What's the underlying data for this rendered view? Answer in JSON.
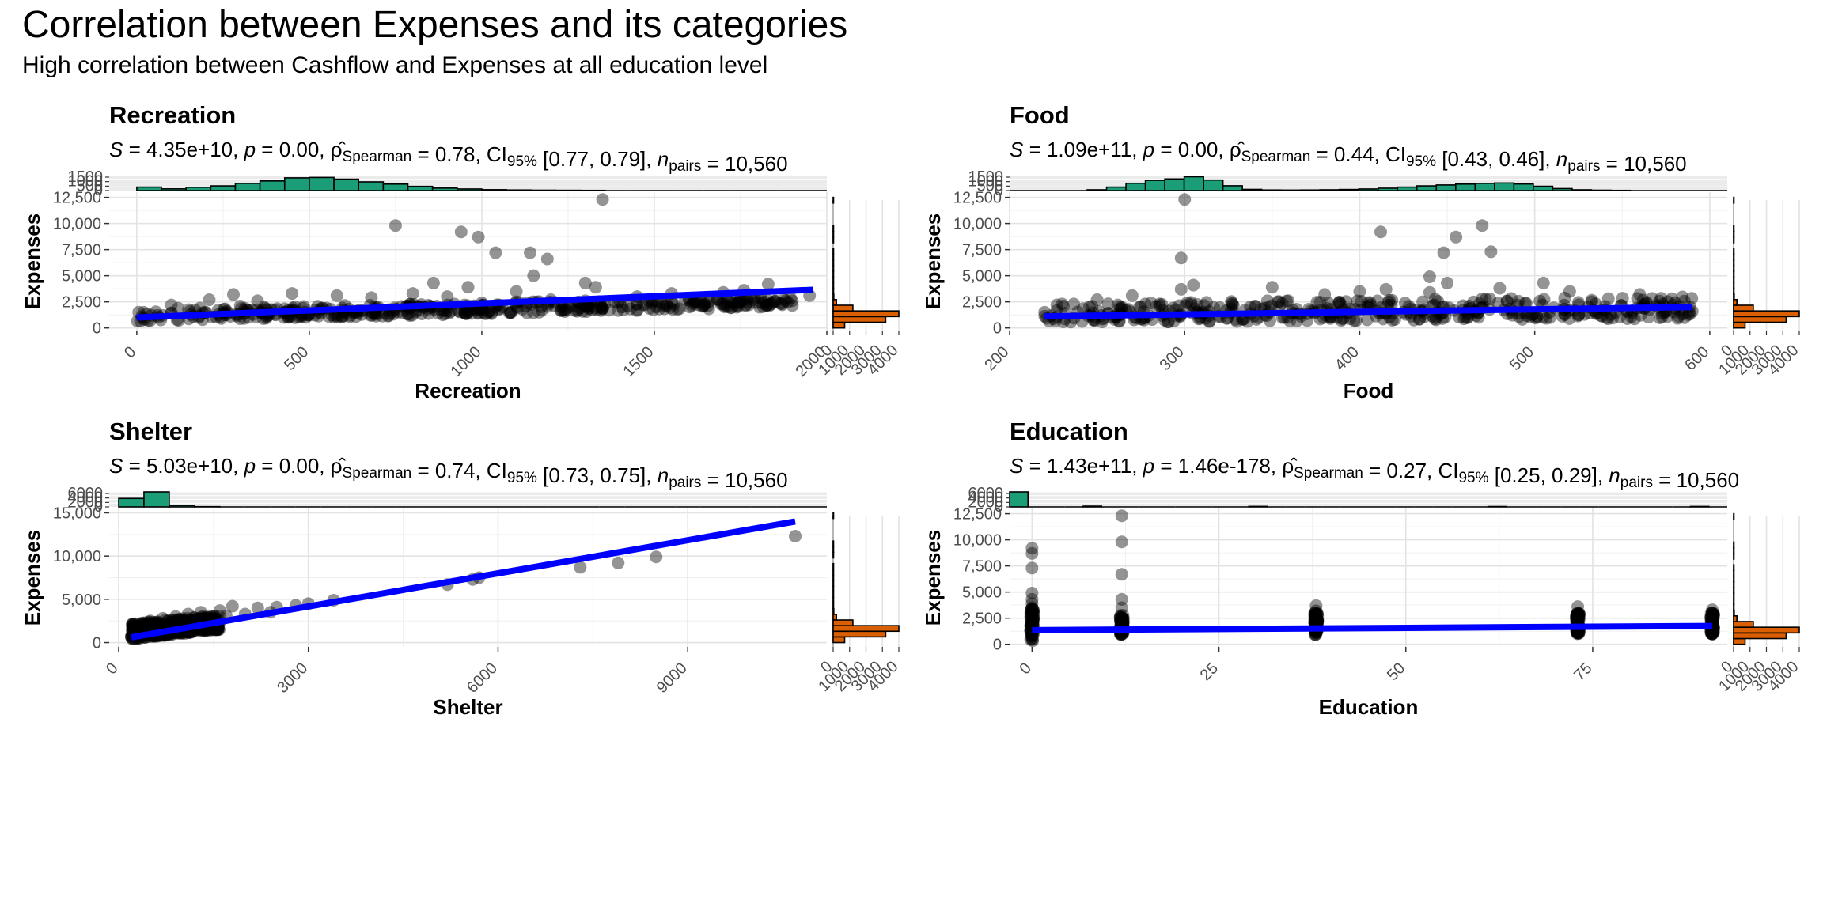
{
  "title": "Correlation between Expenses and its categories",
  "subtitle": "High correlation between Cashflow and Expenses at all education level",
  "colors": {
    "points": "#000000",
    "fit_line": "#0000ff",
    "x_marginal_histogram": "#1b9e77",
    "y_marginal_histogram": "#d95f02"
  },
  "chart_data": [
    {
      "type": "scatter",
      "panel_title": "Recreation",
      "stats": {
        "S": "4.35e+10",
        "p": "0.00",
        "rho": "0.78",
        "ci": "[0.77, 0.79]",
        "n_pairs": "10,560"
      },
      "xlabel": "Recreation",
      "ylabel": "Expenses",
      "xlim": [
        -80,
        2000
      ],
      "ylim": [
        -250,
        13000
      ],
      "x_ticks": [
        0,
        500,
        1000,
        1500,
        2000
      ],
      "y_ticks": [
        0,
        2500,
        5000,
        7500,
        10000,
        12500
      ],
      "y_tick_labels": [
        "0",
        "2,500",
        "5,000",
        "7,500",
        "10,000",
        "12,500"
      ],
      "fit_line": {
        "x": [
          0,
          1960
        ],
        "y": [
          1000,
          3650
        ]
      },
      "points": [
        [
          750,
          9800
        ],
        [
          940,
          9200
        ],
        [
          990,
          8700
        ],
        [
          1040,
          7200
        ],
        [
          1140,
          7200
        ],
        [
          1190,
          6600
        ],
        [
          1150,
          5000
        ],
        [
          1350,
          12300
        ],
        [
          1300,
          4300
        ],
        [
          1330,
          3900
        ],
        [
          1100,
          3500
        ],
        [
          1830,
          4200
        ],
        [
          860,
          4300
        ],
        [
          960,
          3900
        ],
        [
          1760,
          3600
        ],
        [
          1700,
          3400
        ],
        [
          1950,
          3100
        ],
        [
          1550,
          3300
        ],
        [
          1450,
          3000
        ],
        [
          280,
          3200
        ],
        [
          450,
          3300
        ],
        [
          580,
          3100
        ],
        [
          210,
          2700
        ],
        [
          350,
          2600
        ],
        [
          680,
          2900
        ],
        [
          800,
          3300
        ],
        [
          900,
          3000
        ],
        [
          1200,
          2700
        ],
        [
          1600,
          2800
        ],
        [
          1800,
          3000
        ],
        [
          1650,
          2600
        ],
        [
          1400,
          2500
        ],
        [
          1500,
          2600
        ],
        [
          1000,
          2400
        ],
        [
          1100,
          2500
        ],
        [
          1300,
          2600
        ],
        [
          100,
          2200
        ],
        [
          20,
          1500
        ],
        [
          60,
          1200
        ],
        [
          200,
          1500
        ],
        [
          400,
          1700
        ],
        [
          550,
          1900
        ],
        [
          700,
          2000
        ],
        [
          850,
          2100
        ],
        [
          950,
          2200
        ],
        [
          120,
          1900
        ],
        [
          300,
          2100
        ],
        [
          180,
          1000
        ],
        [
          400,
          1300
        ],
        [
          600,
          1500
        ],
        [
          750,
          1800
        ],
        [
          900,
          1900
        ],
        [
          1050,
          2200
        ],
        [
          1250,
          2400
        ],
        [
          1450,
          2300
        ],
        [
          1750,
          2500
        ],
        [
          1900,
          2600
        ]
      ],
      "band": {
        "x": [
          0,
          1900
        ],
        "y_low": [
          600,
          2000
        ],
        "y_high": [
          1800,
          3000
        ]
      },
      "x_hist": {
        "range": [
          0,
          2000
        ],
        "max": 1500,
        "ticks": [
          "1500",
          "1000",
          "500",
          "0"
        ],
        "values": [
          350,
          170,
          330,
          470,
          720,
          960,
          1270,
          1310,
          1140,
          870,
          650,
          420,
          250,
          160,
          90,
          60,
          40,
          30,
          20,
          15,
          10,
          8,
          6,
          5,
          4,
          3,
          2,
          2
        ]
      },
      "y_hist": {
        "max": 4000,
        "ticks": [
          "0",
          "1000",
          "2000",
          "3000",
          "4000"
        ],
        "values": [
          700,
          3200,
          4000,
          1200,
          200,
          40,
          10,
          5,
          2,
          2,
          1,
          1,
          1,
          1,
          0,
          1,
          1,
          1,
          0,
          0,
          0,
          0,
          1
        ]
      }
    },
    {
      "type": "scatter",
      "panel_title": "Food",
      "stats": {
        "S": "1.09e+11",
        "p": "0.00",
        "rho": "0.44",
        "ci": "[0.43, 0.46]",
        "n_pairs": "10,560"
      },
      "xlabel": "Food",
      "ylabel": "Expenses",
      "xlim": [
        200,
        610
      ],
      "ylim": [
        -250,
        13000
      ],
      "x_ticks": [
        200,
        300,
        400,
        500,
        600
      ],
      "y_ticks": [
        0,
        2500,
        5000,
        7500,
        10000,
        12500
      ],
      "y_tick_labels": [
        "0",
        "2,500",
        "5,000",
        "7,500",
        "10,000",
        "12,500"
      ],
      "fit_line": {
        "x": [
          220,
          590
        ],
        "y": [
          1100,
          2000
        ]
      },
      "points": [
        [
          300,
          12300
        ],
        [
          298,
          6700
        ],
        [
          412,
          9200
        ],
        [
          448,
          7200
        ],
        [
          455,
          8700
        ],
        [
          475,
          7300
        ],
        [
          470,
          9800
        ],
        [
          440,
          4900
        ],
        [
          450,
          4300
        ],
        [
          505,
          4300
        ],
        [
          415,
          3700
        ],
        [
          298,
          3700
        ],
        [
          305,
          4100
        ],
        [
          350,
          3900
        ],
        [
          400,
          3500
        ],
        [
          480,
          3800
        ],
        [
          520,
          3500
        ],
        [
          560,
          3200
        ],
        [
          270,
          3100
        ],
        [
          250,
          2700
        ],
        [
          230,
          2300
        ],
        [
          220,
          1500
        ],
        [
          380,
          3200
        ],
        [
          440,
          3400
        ],
        [
          590,
          1600
        ]
      ],
      "band": {
        "x": [
          220,
          590
        ],
        "y_low": [
          500,
          900
        ],
        "y_high": [
          2400,
          3000
        ]
      },
      "x_hist": {
        "range": [
          200,
          610
        ],
        "max": 1500,
        "ticks": [
          "1500",
          "1000",
          "500",
          "0"
        ],
        "values": [
          0,
          0,
          0,
          10,
          80,
          350,
          730,
          1020,
          1160,
          1380,
          1050,
          480,
          120,
          60,
          50,
          60,
          80,
          110,
          160,
          240,
          350,
          470,
          560,
          650,
          720,
          760,
          660,
          430,
          200,
          80,
          40,
          20,
          10,
          10,
          5,
          2,
          0
        ]
      },
      "y_hist": {
        "max": 4000,
        "ticks": [
          "0",
          "1000",
          "2000",
          "3000",
          "4000"
        ],
        "values": [
          700,
          3200,
          4000,
          1200,
          200,
          40,
          10,
          5,
          2,
          2,
          1,
          1,
          1,
          1,
          0,
          1,
          1,
          1,
          0,
          0,
          0,
          0,
          1
        ]
      }
    },
    {
      "type": "scatter",
      "panel_title": "Shelter",
      "stats": {
        "S": "5.03e+10",
        "p": "0.00",
        "rho": "0.74",
        "ci": "[0.73, 0.75]",
        "n_pairs": "10,560"
      },
      "xlabel": "Shelter",
      "ylabel": "Expenses",
      "xlim": [
        -150,
        11200
      ],
      "ylim": [
        -500,
        15500
      ],
      "x_ticks": [
        0,
        3000,
        6000,
        9000
      ],
      "y_ticks": [
        0,
        5000,
        10000,
        15000
      ],
      "y_tick_labels": [
        "0",
        "5,000",
        "10,000",
        "15,000"
      ],
      "fit_line": {
        "x": [
          200,
          10700
        ],
        "y": [
          600,
          14000
        ]
      },
      "points": [
        [
          10700,
          12300
        ],
        [
          8500,
          9900
        ],
        [
          7900,
          9200
        ],
        [
          7300,
          8700
        ],
        [
          5600,
          7300
        ],
        [
          5200,
          6700
        ],
        [
          5700,
          7500
        ],
        [
          3400,
          4900
        ],
        [
          3000,
          4500
        ],
        [
          2800,
          4300
        ],
        [
          2500,
          4100
        ],
        [
          2200,
          4000
        ],
        [
          1800,
          4200
        ],
        [
          1600,
          3700
        ],
        [
          1300,
          3500
        ],
        [
          1100,
          3300
        ],
        [
          900,
          3000
        ],
        [
          700,
          2800
        ],
        [
          500,
          2500
        ],
        [
          300,
          1800
        ],
        [
          200,
          700
        ],
        [
          400,
          1200
        ],
        [
          600,
          1600
        ],
        [
          800,
          2000
        ],
        [
          1000,
          2400
        ],
        [
          1200,
          2600
        ],
        [
          1400,
          2900
        ],
        [
          1700,
          3100
        ],
        [
          2000,
          3300
        ],
        [
          2400,
          3500
        ]
      ],
      "band": {
        "x": [
          200,
          1600
        ],
        "y_low": [
          400,
          1500
        ],
        "y_high": [
          2200,
          3200
        ]
      },
      "x_hist": {
        "range": [
          0,
          11200
        ],
        "max": 6000,
        "ticks": [
          "6000",
          "4000",
          "2000",
          "0"
        ],
        "values": [
          3400,
          6000,
          600,
          100,
          20,
          10,
          5,
          3,
          2,
          2,
          2,
          1,
          1,
          1,
          1,
          1,
          1,
          1,
          1,
          1,
          1,
          1,
          1,
          1,
          1,
          1,
          1,
          1
        ]
      },
      "y_hist": {
        "max": 4000,
        "ticks": [
          "0",
          "1000",
          "2000",
          "3000",
          "4000"
        ],
        "values": [
          700,
          3200,
          4000,
          1200,
          200,
          40,
          10,
          5,
          2,
          2,
          1,
          1,
          1,
          1,
          0,
          1,
          1,
          1,
          0,
          0,
          0,
          0,
          1
        ]
      }
    },
    {
      "type": "scatter",
      "panel_title": "Education",
      "stats": {
        "S": "1.43e+11",
        "p": "1.46e-178",
        "rho": "0.27",
        "ci": "[0.25, 0.29]",
        "n_pairs": "10,560"
      },
      "xlabel": "Education",
      "ylabel": "Expenses",
      "xlim": [
        -3,
        93
      ],
      "ylim": [
        -250,
        13000
      ],
      "x_ticks": [
        0,
        25,
        50,
        75
      ],
      "y_ticks": [
        0,
        2500,
        5000,
        7500,
        10000,
        12500
      ],
      "y_tick_labels": [
        "0",
        "2,500",
        "5,000",
        "7,500",
        "10,000",
        "12,500"
      ],
      "fit_line": {
        "x": [
          0,
          91
        ],
        "y": [
          1350,
          1750
        ]
      },
      "points": [
        [
          0,
          9200
        ],
        [
          0,
          8700
        ],
        [
          0,
          7300
        ],
        [
          0,
          4900
        ],
        [
          0,
          4300
        ],
        [
          0,
          3900
        ],
        [
          0,
          3500
        ],
        [
          12,
          12300
        ],
        [
          12,
          9800
        ],
        [
          12,
          6700
        ],
        [
          12,
          4300
        ],
        [
          12,
          3500
        ],
        [
          38,
          3700
        ],
        [
          38,
          3200
        ],
        [
          73,
          3600
        ],
        [
          73,
          3000
        ],
        [
          91,
          3300
        ],
        [
          91,
          3000
        ]
      ],
      "columns": [
        {
          "x": 0,
          "y_low": 300,
          "y_high": 3400
        },
        {
          "x": 12,
          "y_low": 900,
          "y_high": 3000
        },
        {
          "x": 38,
          "y_low": 900,
          "y_high": 3000
        },
        {
          "x": 73,
          "y_low": 900,
          "y_high": 3000
        },
        {
          "x": 91,
          "y_low": 900,
          "y_high": 3000
        }
      ],
      "x_hist": {
        "range": [
          -3,
          93
        ],
        "max": 6000,
        "ticks": [
          "6000",
          "4000",
          "2000",
          "0"
        ],
        "values": [
          6000,
          0,
          0,
          0,
          300,
          0,
          0,
          0,
          0,
          0,
          0,
          0,
          0,
          200,
          0,
          0,
          0,
          0,
          0,
          0,
          0,
          0,
          0,
          0,
          0,
          0,
          150,
          0,
          0,
          0,
          0,
          0,
          0,
          0,
          0,
          0,
          0,
          180,
          0
        ]
      },
      "y_hist": {
        "max": 4000,
        "ticks": [
          "0",
          "1000",
          "2000",
          "3000",
          "4000"
        ],
        "values": [
          700,
          3200,
          4000,
          1200,
          200,
          40,
          10,
          5,
          2,
          2,
          1,
          1,
          1,
          1,
          0,
          1,
          1,
          1,
          0,
          0,
          0,
          0,
          1
        ]
      }
    }
  ]
}
